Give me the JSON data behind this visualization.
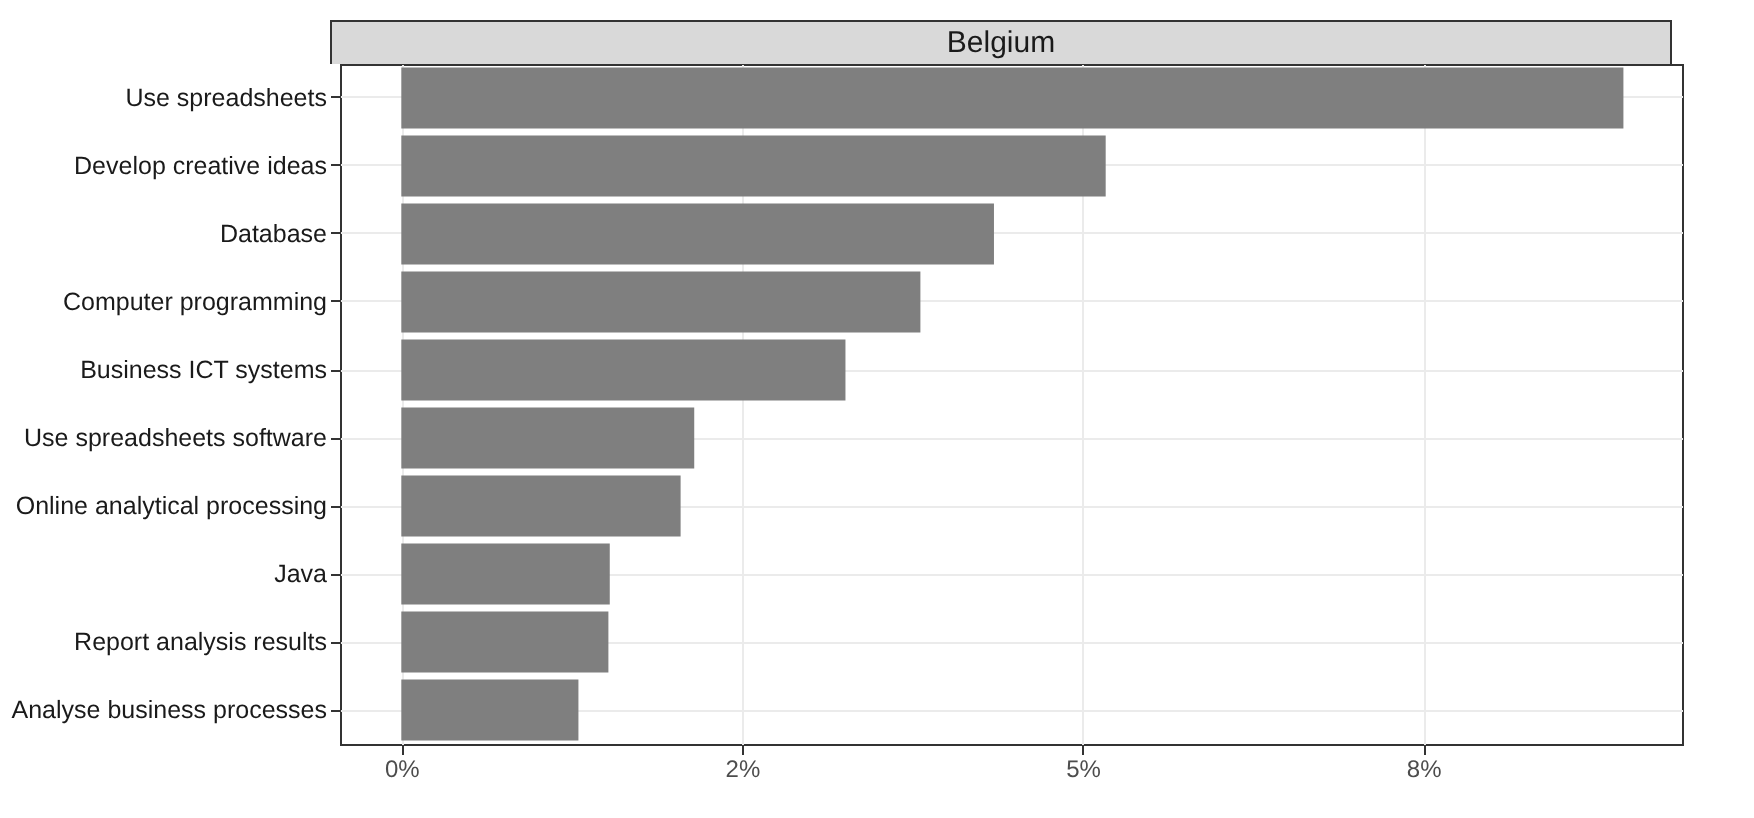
{
  "chart_data": {
    "type": "bar",
    "orientation": "horizontal",
    "title": "Belgium",
    "categories": [
      "Use spreadsheets",
      "Develop creative ideas",
      "Database",
      "Computer programming",
      "Business ICT systems",
      "Use spreadsheets software",
      "Online analytical processing",
      "Java",
      "Report analysis results",
      "Analyse business processes"
    ],
    "values": [
      8.97,
      5.17,
      4.35,
      3.81,
      3.26,
      2.15,
      2.05,
      1.53,
      1.52,
      1.3
    ],
    "color": "#7f7f7f",
    "xlim": [
      -0.45,
      9.4
    ],
    "xticks": [
      {
        "value": 0,
        "label": "0%"
      },
      {
        "value": 2.5,
        "label": "2%"
      },
      {
        "value": 5,
        "label": "5%"
      },
      {
        "value": 7.5,
        "label": "8%"
      }
    ],
    "grid": true
  }
}
